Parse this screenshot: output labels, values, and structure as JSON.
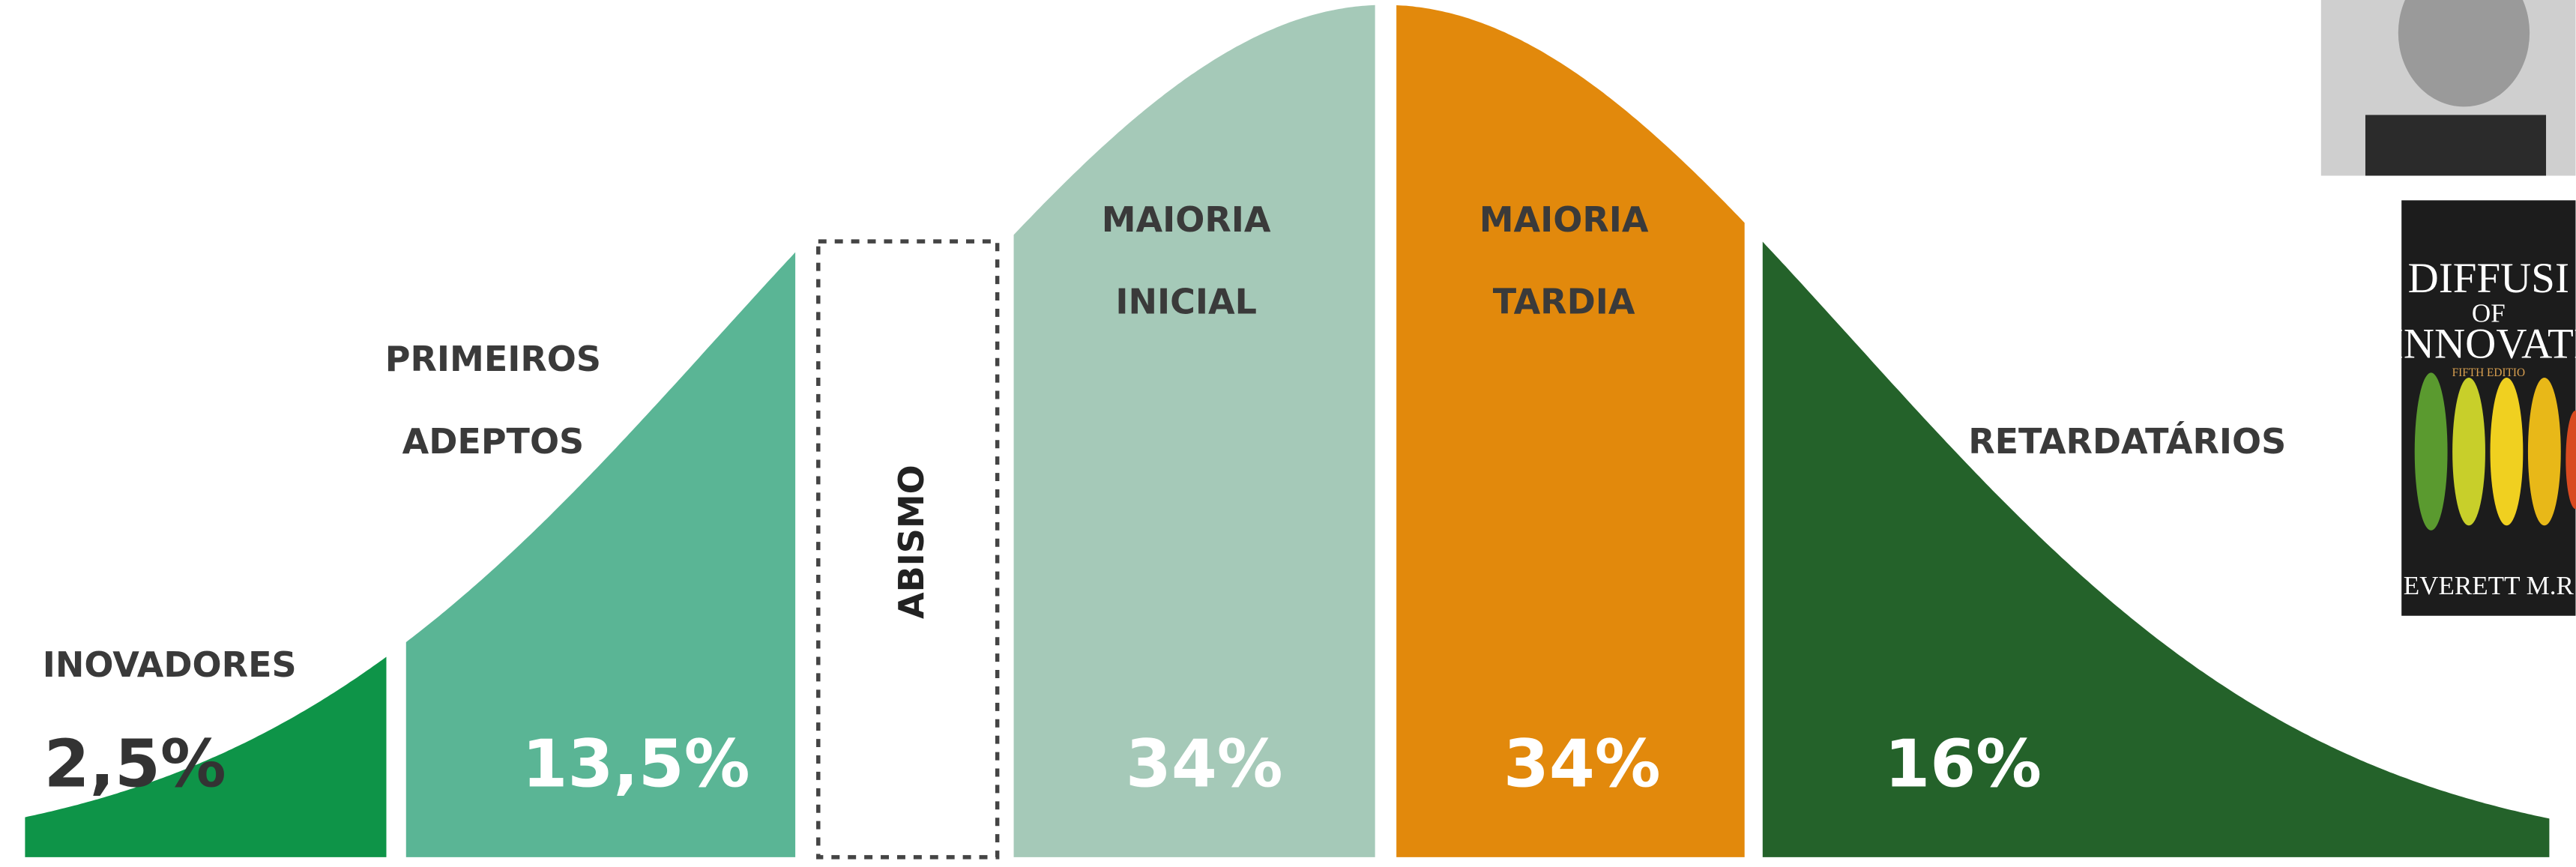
{
  "segments": [
    {
      "label_lines": [
        "INOVADORES"
      ],
      "share": "2,5%"
    },
    {
      "label_lines": [
        "PRIMEIROS",
        "ADEPTOS"
      ],
      "share": "13,5%"
    },
    {
      "label_lines": [
        "ABISMO"
      ]
    },
    {
      "label_lines": [
        "MAIORIA",
        "INICIAL"
      ],
      "share": "34%"
    },
    {
      "label_lines": [
        "MAIORIA",
        "TARDIA"
      ],
      "share": "34%"
    },
    {
      "label_lines": [
        "RETARDATÁRIOS"
      ],
      "share": "16%"
    }
  ],
  "book": {
    "title_lines": [
      "DIFFUSI",
      "OF",
      "INNOVATI"
    ],
    "edition": "FIFTH EDITIO",
    "author": "EVERETT M.R"
  }
}
